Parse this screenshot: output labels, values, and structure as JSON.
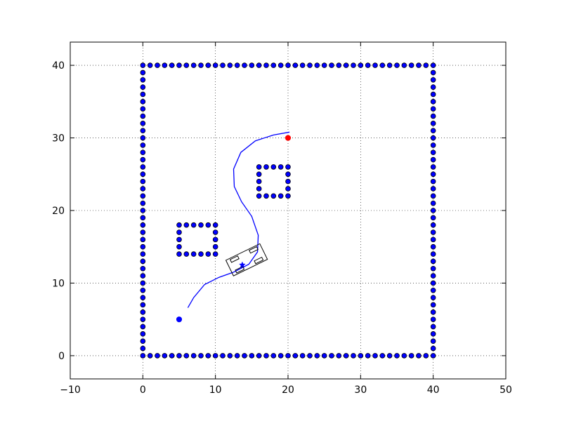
{
  "chart_data": {
    "type": "scatter",
    "title": "",
    "xlabel": "",
    "ylabel": "",
    "xlim": [
      -10,
      50
    ],
    "ylim": [
      -3.2,
      43.2
    ],
    "x_ticks": [
      -10,
      0,
      10,
      20,
      30,
      40,
      50
    ],
    "y_ticks": [
      0,
      10,
      20,
      30,
      40
    ],
    "x_tick_labels": [
      "−10",
      "0",
      "10",
      "20",
      "30",
      "40",
      "50"
    ],
    "y_tick_labels": [
      "0",
      "10",
      "20",
      "30",
      "40"
    ],
    "grid": true,
    "legend": "none",
    "series": [
      {
        "role": "obstacles",
        "style": "marker",
        "color": "#0000ff",
        "edge_color": "#000000",
        "shapes": [
          {
            "kind": "rect_outline",
            "x0": 0,
            "x1": 40,
            "y0": 0,
            "y1": 40,
            "step": 1
          },
          {
            "kind": "rect_outline",
            "x0": 5,
            "x1": 10,
            "y0": 14,
            "y1": 18,
            "step": 1
          },
          {
            "kind": "rect_outline",
            "x0": 16,
            "x1": 20,
            "y0": 22,
            "y1": 26,
            "step": 1
          }
        ]
      },
      {
        "role": "start",
        "style": "marker",
        "color": "#0000ff",
        "points": [
          [
            5,
            5
          ]
        ]
      },
      {
        "role": "goal",
        "style": "marker",
        "color": "#ff0000",
        "points": [
          [
            20,
            30
          ]
        ]
      },
      {
        "role": "trajectory",
        "style": "line",
        "color": "#0000ff",
        "points": [
          [
            6.2,
            6.6
          ],
          [
            7,
            8
          ],
          [
            8.5,
            9.8
          ],
          [
            10.5,
            10.8
          ],
          [
            12.5,
            11.5
          ],
          [
            14.6,
            12.6
          ],
          [
            15.8,
            14.3
          ],
          [
            15.9,
            16.6
          ],
          [
            15,
            19.2
          ],
          [
            13.6,
            21.2
          ],
          [
            12.6,
            23.3
          ],
          [
            12.5,
            25.7
          ],
          [
            13.5,
            28
          ],
          [
            15.5,
            29.6
          ],
          [
            18,
            30.4
          ],
          [
            20.2,
            30.8
          ]
        ]
      },
      {
        "role": "vehicle",
        "style": "outline",
        "color": "#000000",
        "center": [
          14.3,
          13.2
        ],
        "heading_deg": 26,
        "length": 5.2,
        "width": 2.4,
        "marker_point": [
          13.7,
          12.5
        ]
      }
    ]
  }
}
